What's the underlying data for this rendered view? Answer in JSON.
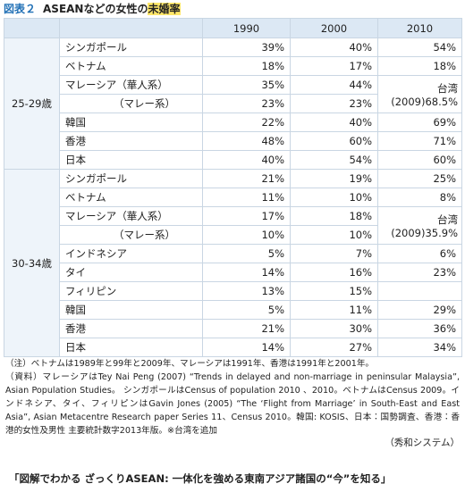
{
  "header": {
    "label": "図表２",
    "title": "ASEANなどの女性の",
    "highlight": "未婚率"
  },
  "table": {
    "columns": [
      "1990",
      "2000",
      "2010"
    ],
    "groups": [
      {
        "label": "25-29歳",
        "merged": "台湾(2009)68.5%",
        "rows": [
          {
            "name": "シンガポール",
            "values": [
              "39%",
              "40%",
              "54%"
            ]
          },
          {
            "name": "ベトナム",
            "values": [
              "18%",
              "17%",
              "18%"
            ]
          },
          {
            "name": "マレーシア（華人系）",
            "values": [
              "35%",
              "44%"
            ]
          },
          {
            "name": "（マレー系）",
            "values": [
              "23%",
              "23%"
            ]
          },
          {
            "name": "韓国",
            "values": [
              "22%",
              "40%",
              "69%"
            ]
          },
          {
            "name": "香港",
            "values": [
              "48%",
              "60%",
              "71%"
            ]
          },
          {
            "name": "日本",
            "values": [
              "40%",
              "54%",
              "60%"
            ]
          }
        ]
      },
      {
        "label": "30-34歳",
        "merged": "台湾(2009)35.9%",
        "rows": [
          {
            "name": "シンガポール",
            "values": [
              "21%",
              "19%",
              "25%"
            ]
          },
          {
            "name": "ベトナム",
            "values": [
              "11%",
              "10%",
              "8%"
            ]
          },
          {
            "name": "マレーシア（華人系）",
            "values": [
              "17%",
              "18%"
            ]
          },
          {
            "name": "（マレー系）",
            "values": [
              "10%",
              "10%"
            ]
          },
          {
            "name": "インドネシア",
            "values": [
              "5%",
              "7%",
              "6%"
            ]
          },
          {
            "name": "タイ",
            "values": [
              "14%",
              "16%",
              "23%"
            ]
          },
          {
            "name": "フィリピン",
            "values": [
              "13%",
              "15%"
            ]
          },
          {
            "name": "韓国",
            "values": [
              "5%",
              "11%",
              "29%"
            ]
          },
          {
            "name": "香港",
            "values": [
              "21%",
              "30%",
              "36%"
            ]
          },
          {
            "name": "日本",
            "values": [
              "14%",
              "27%",
              "34%"
            ]
          }
        ]
      }
    ]
  },
  "notes": {
    "note": "（注）ベトナムは1989年と99年と2009年、マレーシアは1991年、香港は1991年と2001年。",
    "source": "（資料）マレーシアはTey Nai Peng (2007) “Trends in delayed and non-marriage in peninsular Malaysia”, Asian Population Studies。 シンガポールはCensus of population 2010 、2010。ベトナムはCensus 2009。インドネシア、タイ、フィリピンはGavin Jones (2005) “The ‘Flight from Marriage’ in South-East and East Asia”, Asian Metacentre Research paper Series 11、Census 2010。韓国: KOSIS、日本：国勢調査、香港：香港的女性及男性 主要統計数字2013年版。※台湾を追加",
    "publisher": "（秀和システム）"
  },
  "caption": "「図解でわかる ざっくりASEAN: 一体化を強める東南アジア諸国の“今”を知る」"
}
